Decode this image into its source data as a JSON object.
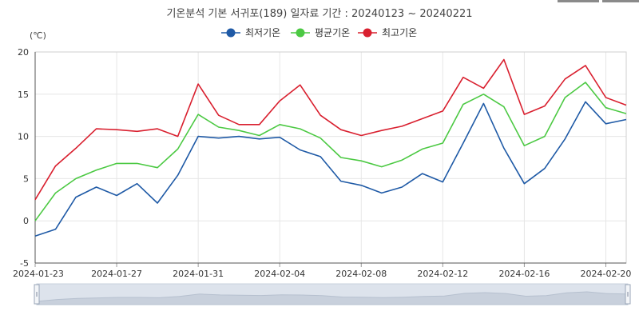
{
  "title": "기온분석 기본 서귀포(189) 일자료 기간 : 20240123 ~ 20240221",
  "chart_data": {
    "type": "line",
    "unit_label": "(℃)",
    "ylim": [
      -5,
      20
    ],
    "yticks": [
      -5,
      0,
      5,
      10,
      15,
      20
    ],
    "xticks": [
      "2024-01-23",
      "2024-01-27",
      "2024-01-31",
      "2024-02-04",
      "2024-02-08",
      "2024-02-12",
      "2024-02-16",
      "2024-02-20"
    ],
    "x": [
      "2024-01-23",
      "2024-01-24",
      "2024-01-25",
      "2024-01-26",
      "2024-01-27",
      "2024-01-28",
      "2024-01-29",
      "2024-01-30",
      "2024-01-31",
      "2024-02-01",
      "2024-02-02",
      "2024-02-03",
      "2024-02-04",
      "2024-02-05",
      "2024-02-06",
      "2024-02-07",
      "2024-02-08",
      "2024-02-09",
      "2024-02-10",
      "2024-02-11",
      "2024-02-12",
      "2024-02-13",
      "2024-02-14",
      "2024-02-15",
      "2024-02-16",
      "2024-02-17",
      "2024-02-18",
      "2024-02-19",
      "2024-02-20",
      "2024-02-21"
    ],
    "series": [
      {
        "name": "최저기온",
        "color": "#1f5aa6",
        "values": [
          -1.8,
          -1.0,
          2.8,
          4.0,
          3.0,
          4.4,
          2.1,
          5.4,
          10.0,
          9.8,
          10.0,
          9.7,
          9.9,
          8.4,
          7.6,
          4.7,
          4.2,
          3.3,
          4.0,
          5.6,
          4.6,
          9.2,
          13.9,
          8.6,
          4.4,
          6.2,
          9.7,
          14.1,
          11.5,
          12.0
        ]
      },
      {
        "name": "평균기온",
        "color": "#4cc943",
        "values": [
          0.0,
          3.3,
          5.0,
          6.0,
          6.8,
          6.8,
          6.3,
          8.5,
          12.6,
          11.1,
          10.7,
          10.1,
          11.4,
          10.9,
          9.8,
          7.5,
          7.1,
          6.4,
          7.2,
          8.5,
          9.2,
          13.8,
          15.0,
          13.5,
          8.9,
          10.0,
          14.6,
          16.4,
          13.4,
          12.7
        ]
      },
      {
        "name": "최고기온",
        "color": "#d9202f",
        "values": [
          2.5,
          6.5,
          8.6,
          10.9,
          10.8,
          10.6,
          10.9,
          10.0,
          16.2,
          12.5,
          11.4,
          11.4,
          14.2,
          16.1,
          12.5,
          10.8,
          10.1,
          10.7,
          11.2,
          12.1,
          13.0,
          17.0,
          15.7,
          19.1,
          12.6,
          13.6,
          16.8,
          18.4,
          14.6,
          13.7
        ]
      }
    ],
    "legend_position": "top-center",
    "grid": true
  }
}
